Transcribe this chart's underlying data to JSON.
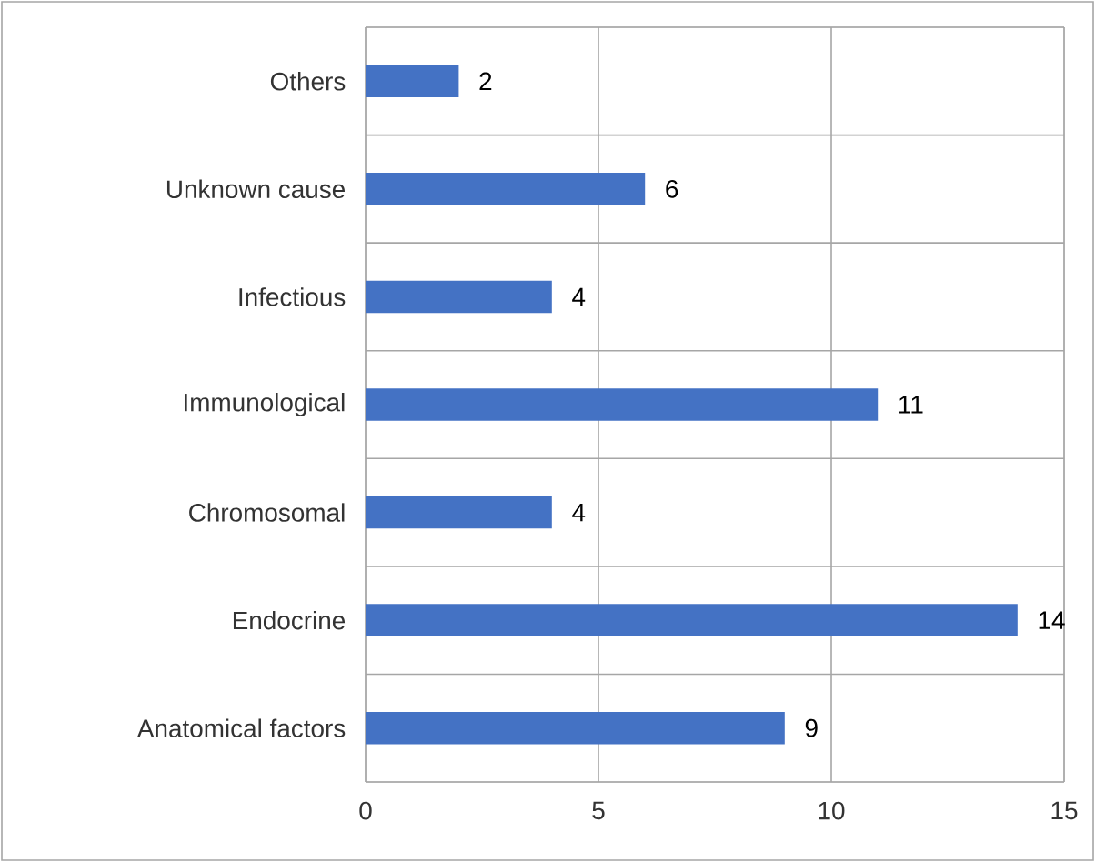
{
  "chart_data": {
    "type": "bar",
    "orientation": "horizontal",
    "categories": [
      "Others",
      "Unknown cause",
      "Infectious",
      "Immunological",
      "Chromosomal",
      "Endocrine",
      "Anatomical factors"
    ],
    "values": [
      2,
      6,
      4,
      11,
      4,
      14,
      9
    ],
    "color": "#4472c4",
    "xlim": [
      0,
      15
    ],
    "xticks": [
      0,
      5,
      10,
      15
    ],
    "grid": true,
    "data_labels": true
  }
}
